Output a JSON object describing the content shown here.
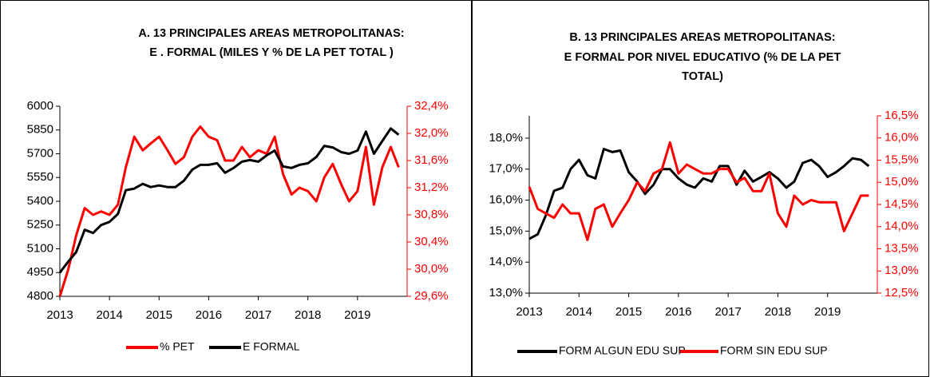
{
  "chart_data": [
    {
      "type": "line",
      "title": [
        "A. 13 PRINCIPALES AREAS METROPOLITANAS:",
        "E . FORMAL (MILES Y % DE LA PET TOTAL )"
      ],
      "x": [
        2013,
        2013.17,
        2013.33,
        2013.5,
        2013.67,
        2013.83,
        2014,
        2014.17,
        2014.33,
        2014.5,
        2014.67,
        2014.83,
        2015,
        2015.17,
        2015.33,
        2015.5,
        2015.67,
        2015.83,
        2016,
        2016.17,
        2016.33,
        2016.5,
        2016.67,
        2016.83,
        2017,
        2017.17,
        2017.33,
        2017.5,
        2017.67,
        2017.83,
        2018,
        2018.17,
        2018.33,
        2018.5,
        2018.67,
        2018.83,
        2019,
        2019.17,
        2019.33,
        2019.5,
        2019.67,
        2019.83
      ],
      "xlim": [
        2013,
        2020
      ],
      "xticks": [
        2013,
        2014,
        2015,
        2016,
        2017,
        2018,
        2019
      ],
      "ylim": [
        4800,
        6000
      ],
      "yticks": [
        4800,
        4950,
        5100,
        5250,
        5400,
        5550,
        5700,
        5850,
        6000
      ],
      "y2lim": [
        29.6,
        32.4
      ],
      "y2ticks": [
        {
          "value": 29.6,
          "label": "29,6%"
        },
        {
          "value": 30.0,
          "label": "30,0%"
        },
        {
          "value": 30.4,
          "label": "30,4%"
        },
        {
          "value": 30.8,
          "label": "30,8%"
        },
        {
          "value": 31.2,
          "label": "31,2%"
        },
        {
          "value": 31.6,
          "label": "31,6%"
        },
        {
          "value": 32.0,
          "label": "32,0%"
        },
        {
          "value": 32.4,
          "label": "32,4%"
        }
      ],
      "y2color": "#ff0000",
      "series": [
        {
          "name": "% PET",
          "color": "#ff0000",
          "axis": "y2",
          "values": [
            29.6,
            30.0,
            30.5,
            30.9,
            30.8,
            30.85,
            30.8,
            30.95,
            31.5,
            31.95,
            31.75,
            31.85,
            31.95,
            31.75,
            31.55,
            31.65,
            31.95,
            32.1,
            31.95,
            31.9,
            31.6,
            31.6,
            31.8,
            31.65,
            31.75,
            31.7,
            31.95,
            31.4,
            31.1,
            31.2,
            31.15,
            31.0,
            31.35,
            31.55,
            31.25,
            31.0,
            31.15,
            31.8,
            30.95,
            31.5,
            31.8,
            31.5
          ]
        },
        {
          "name": "E FORMAL",
          "color": "#000000",
          "values": [
            4950,
            5020,
            5080,
            5220,
            5200,
            5250,
            5270,
            5320,
            5470,
            5480,
            5510,
            5490,
            5500,
            5490,
            5490,
            5530,
            5600,
            5630,
            5630,
            5640,
            5580,
            5610,
            5650,
            5660,
            5650,
            5690,
            5720,
            5620,
            5610,
            5630,
            5640,
            5680,
            5750,
            5740,
            5710,
            5700,
            5720,
            5840,
            5700,
            5780,
            5860,
            5820
          ]
        }
      ]
    },
    {
      "type": "line",
      "title": [
        "B. 13 PRINCIPALES AREAS METROPOLITANAS:",
        "E FORMAL POR NIVEL EDUCATIVO (% DE LA PET",
        "TOTAL)"
      ],
      "x": [
        2013,
        2013.17,
        2013.33,
        2013.5,
        2013.67,
        2013.83,
        2014,
        2014.17,
        2014.33,
        2014.5,
        2014.67,
        2014.83,
        2015,
        2015.17,
        2015.33,
        2015.5,
        2015.67,
        2015.83,
        2016,
        2016.17,
        2016.33,
        2016.5,
        2016.67,
        2016.83,
        2017,
        2017.17,
        2017.33,
        2017.5,
        2017.67,
        2017.83,
        2018,
        2018.17,
        2018.33,
        2018.5,
        2018.67,
        2018.83,
        2019,
        2019.17,
        2019.33,
        2019.5,
        2019.67,
        2019.83
      ],
      "xlim": [
        2013,
        2020
      ],
      "xticks": [
        2013,
        2014,
        2015,
        2016,
        2017,
        2018,
        2019
      ],
      "ylim": [
        13.0,
        18.72
      ],
      "yticks": [
        {
          "value": 13.0,
          "label": "13,0%"
        },
        {
          "value": 14.0,
          "label": "14,0%"
        },
        {
          "value": 15.0,
          "label": "15,0%"
        },
        {
          "value": 16.0,
          "label": "16,0%"
        },
        {
          "value": 17.0,
          "label": "17,0%"
        },
        {
          "value": 18.0,
          "label": "18,0%"
        }
      ],
      "y2lim": [
        12.5,
        16.5
      ],
      "y2ticks": [
        {
          "value": 12.5,
          "label": "12,5%"
        },
        {
          "value": 13.0,
          "label": "13,0%"
        },
        {
          "value": 13.5,
          "label": "13,5%"
        },
        {
          "value": 14.0,
          "label": "14,0%"
        },
        {
          "value": 14.5,
          "label": "14,5%"
        },
        {
          "value": 15.0,
          "label": "15,0%"
        },
        {
          "value": 15.5,
          "label": "15,5%"
        },
        {
          "value": 16.0,
          "label": "16,0%"
        },
        {
          "value": 16.5,
          "label": "16,5%"
        }
      ],
      "y2color": "#ff0000",
      "series": [
        {
          "name": "FORM ALGUN EDU SUP",
          "color": "#000000",
          "values": [
            14.75,
            14.9,
            15.5,
            16.3,
            16.4,
            17.0,
            17.3,
            16.8,
            16.7,
            17.65,
            17.55,
            17.6,
            16.9,
            16.6,
            16.2,
            16.5,
            17.0,
            17.0,
            16.7,
            16.5,
            16.4,
            16.7,
            16.6,
            17.1,
            17.1,
            16.5,
            16.95,
            16.6,
            16.75,
            16.9,
            16.7,
            16.4,
            16.6,
            17.2,
            17.3,
            17.1,
            16.75,
            16.9,
            17.1,
            17.35,
            17.3,
            17.1
          ]
        },
        {
          "name": "FORM SIN EDU SUP",
          "color": "#ff0000",
          "axis": "y2",
          "values": [
            14.9,
            14.4,
            14.3,
            14.2,
            14.5,
            14.3,
            14.3,
            13.7,
            14.4,
            14.5,
            14.0,
            14.3,
            14.6,
            15.0,
            14.8,
            15.2,
            15.3,
            15.9,
            15.2,
            15.4,
            15.3,
            15.2,
            15.2,
            15.3,
            15.3,
            15.0,
            15.1,
            14.8,
            14.8,
            15.2,
            14.3,
            14.0,
            14.7,
            14.5,
            14.6,
            14.55,
            14.55,
            14.55,
            13.9,
            14.3,
            14.7,
            14.7
          ]
        }
      ]
    }
  ]
}
